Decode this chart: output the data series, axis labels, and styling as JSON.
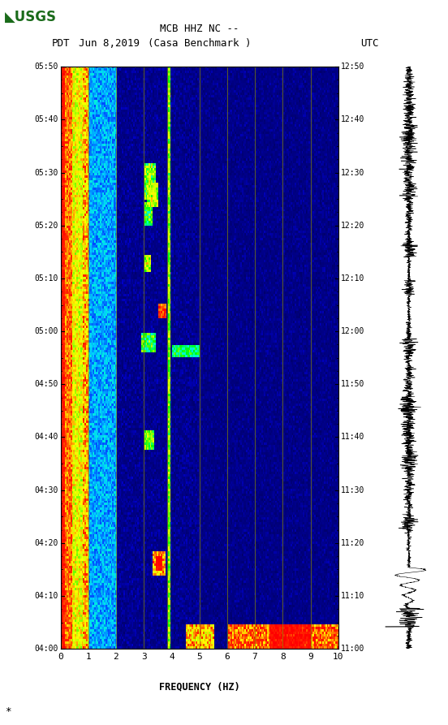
{
  "title_line1": "MCB HHZ NC --",
  "title_line2": "(Casa Benchmark )",
  "date_label": "Jun 8,2019",
  "pdt_label": "PDT",
  "utc_label": "UTC",
  "left_time_labels": [
    "04:00",
    "04:10",
    "04:20",
    "04:30",
    "04:40",
    "04:50",
    "05:00",
    "05:10",
    "05:20",
    "05:30",
    "05:40",
    "05:50"
  ],
  "right_time_labels": [
    "11:00",
    "11:10",
    "11:20",
    "11:30",
    "11:40",
    "11:50",
    "12:00",
    "12:10",
    "12:20",
    "12:30",
    "12:40",
    "12:50"
  ],
  "xlabel": "FREQUENCY (HZ)",
  "xticks": [
    0,
    1,
    2,
    3,
    4,
    5,
    6,
    7,
    8,
    9,
    10
  ],
  "xlim": [
    0,
    10
  ],
  "freq_min": 0,
  "freq_max": 10,
  "n_times": 240,
  "n_freqs": 200,
  "bg_color": "#ffffff",
  "vertical_lines_x": [
    1.0,
    2.0,
    3.0,
    3.85,
    5.0,
    6.0,
    7.0,
    8.0,
    9.0
  ],
  "vline_color": "#8B8B00",
  "figsize": [
    5.52,
    8.93
  ],
  "dpi": 100
}
